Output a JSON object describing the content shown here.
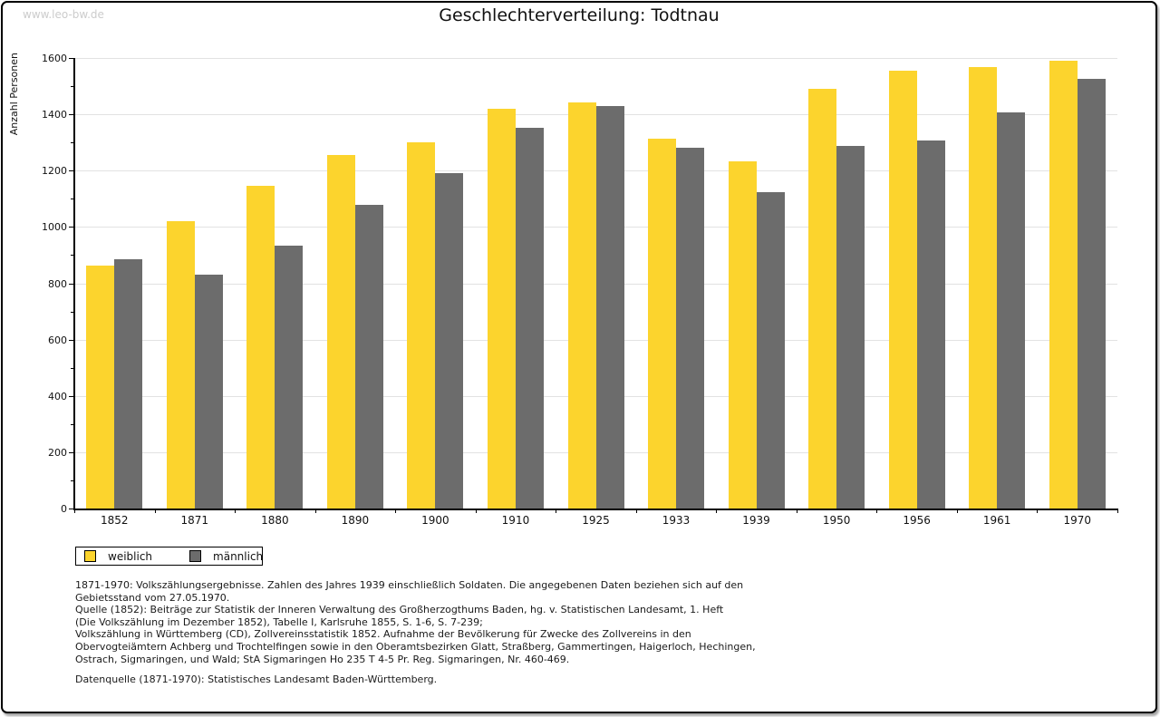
{
  "watermark": "www.leo-bw.de",
  "title": "Geschlechterverteilung: Todtnau",
  "colors": {
    "weiblich": "#fcd42d",
    "maennlich": "#6c6c6c",
    "gridline": "#e2e2e2",
    "axis": "#000000",
    "watermark": "#cccccc"
  },
  "chart_data": {
    "type": "bar",
    "title": "Geschlechterverteilung: Todtnau",
    "xlabel": "",
    "ylabel": "Anzahl Personen",
    "ylim": [
      0,
      1600
    ],
    "ytick_step": 200,
    "ytick_minor_step": 100,
    "grid": "horizontal",
    "legend_position": "bottom-left",
    "categories": [
      "1852",
      "1871",
      "1880",
      "1890",
      "1900",
      "1910",
      "1925",
      "1933",
      "1939",
      "1950",
      "1956",
      "1961",
      "1970"
    ],
    "series": [
      {
        "name": "weiblich",
        "color": "#fcd42d",
        "values": [
          862,
          1020,
          1145,
          1255,
          1300,
          1420,
          1442,
          1313,
          1232,
          1490,
          1555,
          1568,
          1590
        ]
      },
      {
        "name": "männlich",
        "color": "#6c6c6c",
        "values": [
          884,
          830,
          932,
          1080,
          1190,
          1352,
          1430,
          1280,
          1125,
          1289,
          1308,
          1407,
          1525
        ]
      }
    ]
  },
  "legend": {
    "items": [
      {
        "label": "weiblich",
        "color": "#fcd42d"
      },
      {
        "label": "männlich",
        "color": "#6c6c6c"
      }
    ]
  },
  "notes": {
    "lines": [
      "1871-1970: Volkszählungsergebnisse. Zahlen des Jahres 1939 einschließlich Soldaten. Die angegebenen Daten beziehen sich auf den",
      "Gebietsstand vom 27.05.1970.",
      "Quelle (1852): Beiträge zur Statistik der Inneren Verwaltung des Großherzogthums Baden, hg. v. Statistischen Landesamt, 1. Heft",
      "(Die Volkszählung im Dezember 1852), Tabelle I, Karlsruhe 1855, S. 1-6, S. 7-239;",
      "Volkszählung in Württemberg (CD), Zollvereinsstatistik 1852. Aufnahme der Bevölkerung für Zwecke des Zollvereins in den",
      "Obervogteiämtern Achberg und Trochtelfingen sowie in den Oberamtsbezirken Glatt, Straßberg, Gammertingen, Haigerloch, Hechingen,",
      "Ostrach, Sigmaringen, und Wald; StA Sigmaringen Ho 235 T 4-5 Pr. Reg. Sigmaringen, Nr. 460-469."
    ],
    "source": "Datenquelle (1871-1970): Statistisches Landesamt Baden-Württemberg."
  }
}
